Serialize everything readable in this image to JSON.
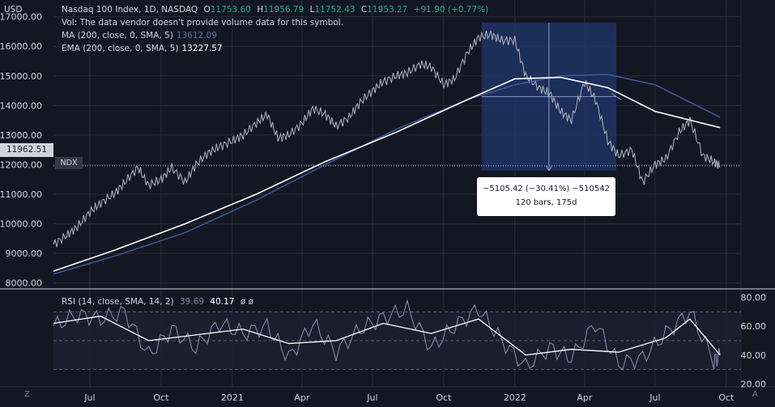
{
  "header": {
    "symbol": "Nasdaq 100 Index, 1D, NASDAQ",
    "open_label": "O",
    "open": "11753.60",
    "high_label": "H",
    "high": "11956.79",
    "low_label": "L",
    "low": "11752.43",
    "close_label": "C",
    "close": "11953.27",
    "change": "+91.90 (+0.77%)",
    "vol_note": "Vol: The data vendor doesn't provide volume data for this symbol.",
    "ma_label": "MA (200, close, 0, SMA, 5)",
    "ma_value": "13612.09",
    "ema_label": "EMA (200, close, 0, SMA, 5)",
    "ema_value": "13227.57"
  },
  "currency": "USD",
  "current_price": "11962.51",
  "ticker_tag": "NDX",
  "measure": {
    "line1": "−5105.42 (−30.41%) −510542",
    "line2": "120 bars, 175d"
  },
  "rsi": {
    "label": "RSI (14, close, SMA, 14, 2)",
    "value1": "39.69",
    "value2": "40.17",
    "flags": "ø  ø"
  },
  "buttons": {
    "zoom": "Z",
    "auto": "A"
  },
  "colors": {
    "background": "#131722",
    "ma": "#3f5a9c",
    "ema": "#ffffff",
    "price": "#b2b5be",
    "measure_box": "#1e3364",
    "rsi": "#8b93b0"
  },
  "chart_data": [
    {
      "type": "line",
      "series": [
        {
          "name": "Nasdaq 100 Index",
          "x": [
            "2020-05-15",
            "2020-06-01",
            "2020-06-15",
            "2020-07-01",
            "2020-07-15",
            "2020-08-01",
            "2020-08-15",
            "2020-09-01",
            "2020-09-15",
            "2020-10-01",
            "2020-10-15",
            "2020-11-01",
            "2020-11-15",
            "2020-12-01",
            "2020-12-15",
            "2021-01-01",
            "2021-01-15",
            "2021-02-01",
            "2021-02-15",
            "2021-03-01",
            "2021-03-15",
            "2021-04-01",
            "2021-04-15",
            "2021-05-01",
            "2021-05-15",
            "2021-06-01",
            "2021-06-15",
            "2021-07-01",
            "2021-07-15",
            "2021-08-01",
            "2021-08-15",
            "2021-09-01",
            "2021-09-15",
            "2021-10-01",
            "2021-10-15",
            "2021-11-01",
            "2021-11-15",
            "2021-12-01",
            "2021-12-15",
            "2022-01-01",
            "2022-01-15",
            "2022-02-01",
            "2022-02-15",
            "2022-03-01",
            "2022-03-15",
            "2022-04-01",
            "2022-04-15",
            "2022-05-01",
            "2022-05-15",
            "2022-06-01",
            "2022-06-15",
            "2022-07-01",
            "2022-07-15",
            "2022-08-01",
            "2022-08-15",
            "2022-09-01",
            "2022-09-15",
            "2022-09-23"
          ],
          "y": [
            9300,
            9600,
            9900,
            10400,
            10700,
            11000,
            11400,
            11900,
            11300,
            11500,
            11900,
            11400,
            12000,
            12400,
            12600,
            12800,
            13000,
            13400,
            13700,
            12900,
            13000,
            13400,
            13900,
            13700,
            13300,
            13600,
            14100,
            14500,
            14800,
            15000,
            15100,
            15400,
            15300,
            14700,
            14900,
            15800,
            16300,
            16400,
            16200,
            16200,
            15000,
            14600,
            14400,
            13800,
            13500,
            14800,
            14200,
            12800,
            12300,
            12500,
            11400,
            12000,
            12200,
            13100,
            13500,
            12300,
            12100,
            11950
          ]
        },
        {
          "name": "MA (200, close, 0, SMA, 5)",
          "x": [
            "2020-05-15",
            "2020-08-01",
            "2020-11-01",
            "2021-02-01",
            "2021-05-01",
            "2021-08-01",
            "2021-11-01",
            "2022-01-01",
            "2022-03-01",
            "2022-05-01",
            "2022-07-01",
            "2022-09-23"
          ],
          "y": [
            8300,
            8900,
            9700,
            10800,
            12000,
            13200,
            14200,
            14700,
            15000,
            15050,
            14700,
            13600
          ]
        },
        {
          "name": "EMA (200, close, 0, SMA, 5)",
          "x": [
            "2020-05-15",
            "2020-08-01",
            "2020-11-01",
            "2021-02-01",
            "2021-05-01",
            "2021-08-01",
            "2021-11-01",
            "2022-01-01",
            "2022-03-01",
            "2022-05-01",
            "2022-07-01",
            "2022-09-23"
          ],
          "y": [
            8400,
            9100,
            10000,
            11000,
            12100,
            13100,
            14200,
            14900,
            14950,
            14600,
            13800,
            13250
          ]
        }
      ],
      "y_ticks": [
        "17000.00",
        "16000.00",
        "15000.00",
        "14000.00",
        "13000.00",
        "12000.00",
        "11000.00",
        "10000.00",
        "9000.00",
        "8000.00"
      ],
      "ylim": [
        7800,
        17100
      ],
      "x_ticks": [
        "Jul",
        "Oct",
        "2021",
        "Apr",
        "Jul",
        "Oct",
        "2022",
        "Apr",
        "Jul",
        "Oct"
      ],
      "measure_range": {
        "x": [
          "2021-11-19",
          "2022-05-12"
        ],
        "y": [
          11800,
          16800
        ]
      }
    },
    {
      "type": "line",
      "series": [
        {
          "name": "RSI",
          "x": [
            "2020-05-15",
            "2020-06-15",
            "2020-07-15",
            "2020-08-15",
            "2020-09-15",
            "2020-10-15",
            "2020-11-15",
            "2020-12-15",
            "2021-01-15",
            "2021-02-15",
            "2021-03-15",
            "2021-04-15",
            "2021-05-15",
            "2021-06-15",
            "2021-07-15",
            "2021-08-15",
            "2021-09-15",
            "2021-10-15",
            "2021-11-15",
            "2021-12-15",
            "2022-01-15",
            "2022-02-15",
            "2022-03-15",
            "2022-04-15",
            "2022-05-15",
            "2022-06-15",
            "2022-07-15",
            "2022-08-15",
            "2022-09-15",
            "2022-09-23"
          ],
          "y": [
            60,
            68,
            65,
            70,
            40,
            58,
            45,
            62,
            55,
            60,
            38,
            62,
            42,
            58,
            66,
            72,
            45,
            60,
            72,
            50,
            32,
            45,
            38,
            62,
            34,
            38,
            55,
            70,
            36,
            40
          ]
        },
        {
          "name": "RSI MA",
          "x": [
            "2020-05-15",
            "2020-07-15",
            "2020-09-15",
            "2020-11-15",
            "2021-01-15",
            "2021-03-15",
            "2021-05-15",
            "2021-07-15",
            "2021-09-15",
            "2021-11-15",
            "2022-01-15",
            "2022-03-15",
            "2022-05-15",
            "2022-07-15",
            "2022-08-15",
            "2022-09-23"
          ],
          "y": [
            62,
            67,
            50,
            54,
            58,
            48,
            50,
            62,
            55,
            65,
            40,
            44,
            42,
            52,
            65,
            40
          ]
        }
      ],
      "y_ticks": [
        "80.00",
        "60.00",
        "40.00",
        "20.00"
      ],
      "ylim": [
        18,
        82
      ],
      "bands": [
        70,
        50,
        30
      ]
    }
  ]
}
